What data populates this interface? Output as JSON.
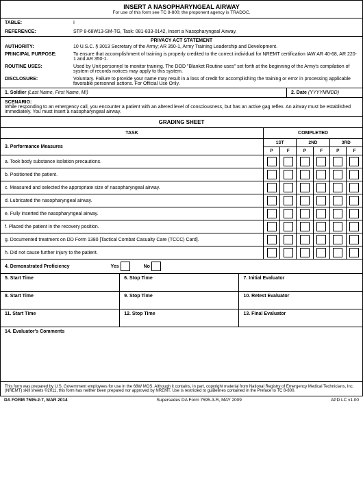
{
  "header": {
    "title": "INSERT A NASOPHARYNGEAL AIRWAY",
    "subtitle": "For use of this form see TC 8-800; the proponent agency is TRADOC."
  },
  "meta": {
    "table_label": "TABLE:",
    "table_value": "I",
    "reference_label": "REFERENCE:",
    "reference_value": "STP 8-68W13-SM-TG, Task: 081-833-0142, Insert a Nasopharyngeal Airway."
  },
  "privacy": {
    "heading": "PRIVACY ACT STATEMENT",
    "rows": [
      {
        "label": "AUTHORITY:",
        "value": "10 U.S.C. § 3013 Secretary of the Army; AR 350-1, Army Training Leadership and Development."
      },
      {
        "label": "PRINCIPAL PURPOSE:",
        "value": "To ensure that accomplishment of training is properly credited to the correct individual for NREMT certification IAW AR 40-68, AR 220-1 and AR 350-1."
      },
      {
        "label": "ROUTINE USES:",
        "value": "Used by Unit personnel to monitor training. The DOD \"Blanket Routine uses\" set forth at the beginning of the Army's compilation of system of records notices may apply to this system."
      },
      {
        "label": "DISCLOSURE:",
        "value": "Voluntary. Failure to provide your name may result in a loss of credit for accomplishing the training or error in processing applicable favorable personnel actions. For Official Use Only."
      }
    ]
  },
  "soldier": {
    "label": "1. Soldier",
    "hint": "(Last Name, First Name, MI)"
  },
  "date": {
    "label": "2. Date",
    "hint": "(YYYYMMDD)"
  },
  "scenario": {
    "label": "SCENARIO:",
    "text": "While responding to an emergency call, you encounter a patient with an altered level of consciousness, but has an active gag reflex. An airway must be established immediately. You must insert a nasopharyngeal airway."
  },
  "grading": {
    "heading": "GRADING SHEET",
    "task_label": "TASK",
    "completed_label": "COMPLETED",
    "pm_label": "3. Performance Measures",
    "attempts": [
      "1ST",
      "2ND",
      "3RD"
    ],
    "pf": [
      "P",
      "F",
      "P",
      "F",
      "P",
      "F"
    ],
    "measures": [
      "a. Took body substance isolation precautions.",
      "b. Positioned the patient.",
      "c. Measured and selected the appropriate size of nasopharyngeal airway.",
      "d. Lubricated the nasopharyngeal airway.",
      "e. Fully inserted the nasopharyngeal airway.",
      "f. Placed the patient in the recovery position.",
      "g. Documented treatment on DD Form 1380 [Tactical Combat Casualty Care (TCCC) Card].",
      "h. Did not cause further injury to the patient."
    ]
  },
  "demoprof": {
    "label": "4. Demonstrated Proficiency",
    "yes": "Yes",
    "no": "No"
  },
  "times": [
    {
      "start": "5. Start Time",
      "stop": "6. Stop Time",
      "eval": "7. Initial Evaluator"
    },
    {
      "start": "8. Start Time",
      "stop": "9. Stop Time",
      "eval": "10. Retest Evaluator"
    },
    {
      "start": "11. Start Time",
      "stop": "12. Stop Time",
      "eval": "13. Final Evaluator"
    }
  ],
  "comments": {
    "label": "14. Evaluator's Comments"
  },
  "footnote": "This form was prepared by U.S. Government employees for use in the 68W MOS. Although it contains, in part, copyright material from National Registry of Emergency Medical Technicians, Inc. (NREMT) skill sheets ©2011, this form has neither been prepared nor approved by NREMT. Use is restricted to guidelines contained in the Preface to TC 8-800.",
  "bottom": {
    "left": "DA FORM 7595-2-7, MAR 2014",
    "center": "Supersedes DA Form 7595-3-R, MAY 2009",
    "right": "APD LC v1.00"
  }
}
